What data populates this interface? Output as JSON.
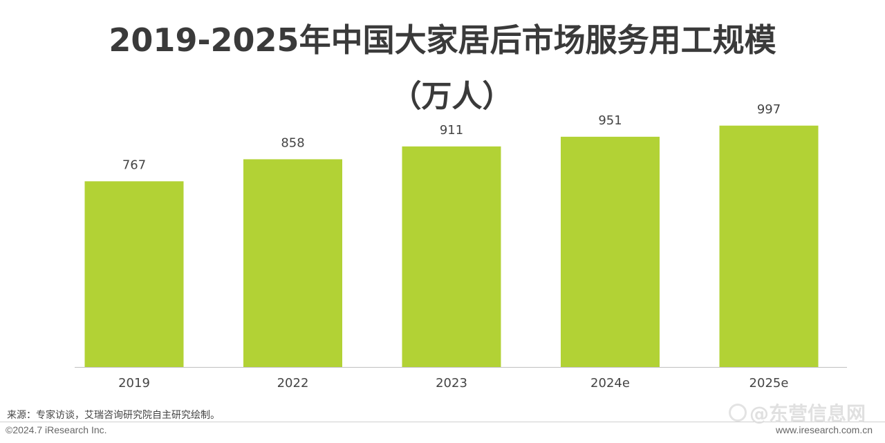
{
  "title": "2019-2025年中国大家居后市场服务用工规模",
  "subtitle": "（万人）",
  "source": "来源：专家访谈，艾瑞咨询研究院自主研究绘制。",
  "copyright": "©2024.7 iResearch Inc.",
  "website": "www.iresearch.com.cn",
  "watermark": "@东营信息网",
  "colors": {
    "bar": "#b2d235",
    "axis": "#bfbfbf",
    "label": "#444444"
  },
  "chart_data": {
    "type": "bar",
    "categories": [
      "2019",
      "2022",
      "2023",
      "2024e",
      "2025e"
    ],
    "values": [
      767,
      858,
      911,
      951,
      997
    ],
    "ylim": [
      0,
      1000
    ],
    "grid": false,
    "legend": "none"
  }
}
